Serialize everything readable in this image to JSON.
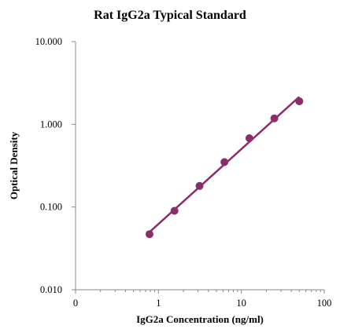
{
  "chart_data": {
    "type": "scatter",
    "title": "Rat IgG2a Typical Standard",
    "xlabel": "IgG2a Concentration (ng/ml)",
    "ylabel": "Optical Density",
    "x_scale": "log",
    "y_scale": "log",
    "xlim": [
      0.1,
      100
    ],
    "ylim": [
      0.01,
      10
    ],
    "x_ticks": [
      {
        "value": 0.1,
        "label": "0"
      },
      {
        "value": 1,
        "label": "1"
      },
      {
        "value": 10,
        "label": "10"
      },
      {
        "value": 100,
        "label": "100"
      }
    ],
    "y_ticks": [
      {
        "value": 0.01,
        "label": "0.010"
      },
      {
        "value": 0.1,
        "label": "0.100"
      },
      {
        "value": 1,
        "label": "1.000"
      },
      {
        "value": 10,
        "label": "10.000"
      }
    ],
    "grid": false,
    "legend": "none",
    "series": [
      {
        "x": [
          0.78,
          1.56,
          3.13,
          6.25,
          12.5,
          25,
          50
        ],
        "y": [
          0.047,
          0.09,
          0.18,
          0.35,
          0.68,
          1.18,
          1.9
        ],
        "color": "#8b2d6b",
        "marker": "circle",
        "fit_line": true
      }
    ]
  }
}
